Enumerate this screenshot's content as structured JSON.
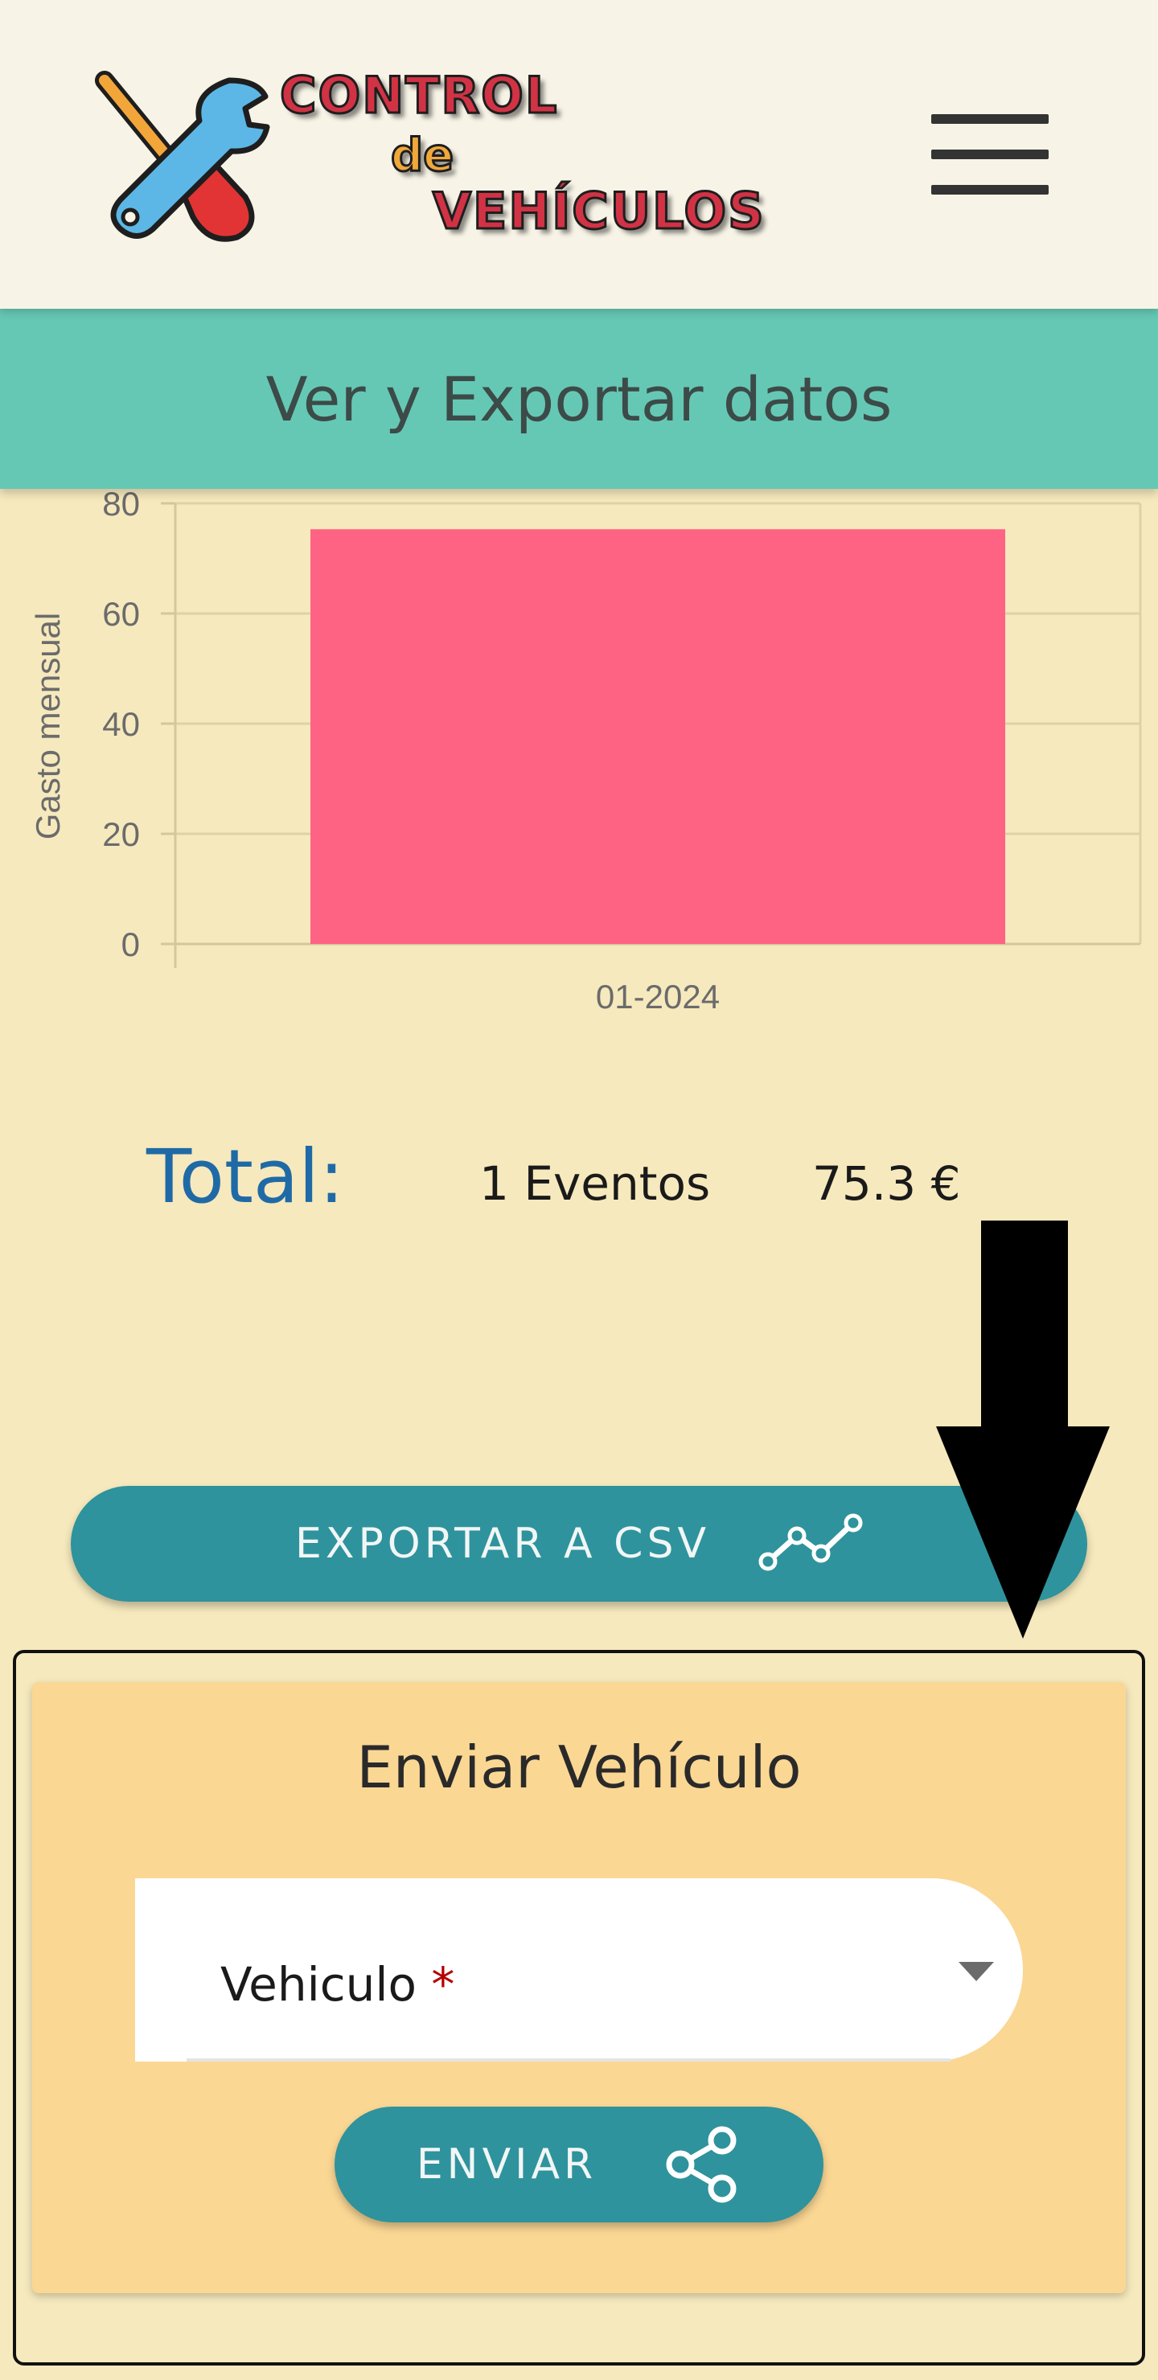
{
  "header": {
    "logo_line1": "CONTROL",
    "logo_line2": "de",
    "logo_line3": "VEHÍCULOS",
    "logo_icon": "wrench-screwdriver-icon",
    "menu_icon": "hamburger-menu-icon"
  },
  "page": {
    "title": "Ver y Exportar datos"
  },
  "chart_data": {
    "type": "bar",
    "categories": [
      "01-2024"
    ],
    "values": [
      75.3
    ],
    "title": "",
    "xlabel": "",
    "ylabel": "Gasto mensual",
    "ylim": [
      0,
      80
    ],
    "yticks": [
      0,
      20,
      40,
      60,
      80
    ],
    "grid": true,
    "bar_color": "#ff6384",
    "background": "#f6e9bd"
  },
  "totals": {
    "label": "Total:",
    "events": "1 Eventos",
    "amount": "75.3 €"
  },
  "export": {
    "button_label": "EXPORTAR A CSV",
    "icon": "line-chart-icon"
  },
  "send_vehicle": {
    "title": "Enviar Vehículo",
    "select_label": "Vehiculo",
    "required_mark": "*",
    "button_label": "ENVIAR",
    "button_icon": "share-icon"
  },
  "colors": {
    "accent": "#2e939c",
    "title_bar": "#65c8b4",
    "card": "#fbd794",
    "total_label": "#1f6aa6"
  }
}
